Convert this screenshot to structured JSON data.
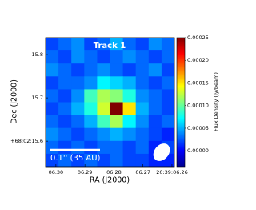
{
  "chart_data": {
    "type": "heatmap",
    "title": "Track 1",
    "x_label": "RA (J2000)",
    "y_label": "Dec (J2000)",
    "colorbar_label": "Flux Density (Jy/beam)",
    "scale_bar_label": "0.1'' (35 AU)",
    "values": [
      [
        2e-05,
        3e-05,
        4e-05,
        2e-05,
        3e-05,
        5e-05,
        3e-05,
        2e-05,
        4e-05,
        3e-05
      ],
      [
        3e-05,
        2e-05,
        4e-05,
        3e-05,
        2e-05,
        3e-05,
        4e-05,
        3e-05,
        2e-05,
        3e-05
      ],
      [
        4e-05,
        3e-05,
        2e-05,
        3e-05,
        4e-05,
        3e-05,
        2e-05,
        3e-05,
        4e-05,
        2e-05
      ],
      [
        2e-05,
        3e-05,
        3e-05,
        4e-05,
        7e-05,
        6e-05,
        5e-05,
        3e-05,
        2e-05,
        3e-05
      ],
      [
        3e-05,
        2e-05,
        4e-05,
        9e-05,
        0.00012,
        0.00011,
        8e-05,
        4e-05,
        3e-05,
        2e-05
      ],
      [
        2e-05,
        3e-05,
        5e-05,
        8e-05,
        0.00013,
        0.00025,
        0.00015,
        5e-05,
        3e-05,
        2e-05
      ],
      [
        3e-05,
        2e-05,
        3e-05,
        5e-05,
        9e-05,
        0.00012,
        7e-05,
        4e-05,
        2e-05,
        3e-05
      ],
      [
        4e-05,
        3e-05,
        2e-05,
        3e-05,
        4e-05,
        5e-05,
        4e-05,
        3e-05,
        2e-05,
        1e-05
      ],
      [
        3e-05,
        2e-05,
        3e-05,
        2e-05,
        3e-05,
        3e-05,
        2e-05,
        3e-05,
        1e-05,
        2e-05
      ],
      [
        2e-05,
        3e-05,
        2e-05,
        3e-05,
        2e-05,
        3e-05,
        2e-05,
        2e-05,
        1e-05,
        1e-05
      ]
    ],
    "xlim": [
      6.30355,
      6.25916
    ],
    "xticks": [
      {
        "value": 6.3,
        "label": "06.30"
      },
      {
        "value": 6.29,
        "label": "06.29"
      },
      {
        "value": 6.28,
        "label": "06.28"
      },
      {
        "value": 6.27,
        "label": "06.27"
      },
      {
        "value": 6.26,
        "label": "20:39:06.26"
      }
    ],
    "ylim": [
      15.541,
      15.839
    ],
    "yticks": [
      {
        "value": 15.6,
        "label": "+68:02:15.6"
      },
      15.7,
      15.8
    ],
    "zlim": [
      -3.5e-05,
      0.00025
    ],
    "zticks": [
      {
        "value": 0,
        "label": "0.00000"
      },
      {
        "value": 5e-05,
        "label": "0.00005"
      },
      {
        "value": 0.0001,
        "label": "0.00010"
      },
      {
        "value": 0.00015,
        "label": "0.00015"
      },
      {
        "value": 0.0002,
        "label": "0.00020"
      },
      {
        "value": 0.00025,
        "label": "0.00025"
      }
    ],
    "colormap": "jet"
  }
}
